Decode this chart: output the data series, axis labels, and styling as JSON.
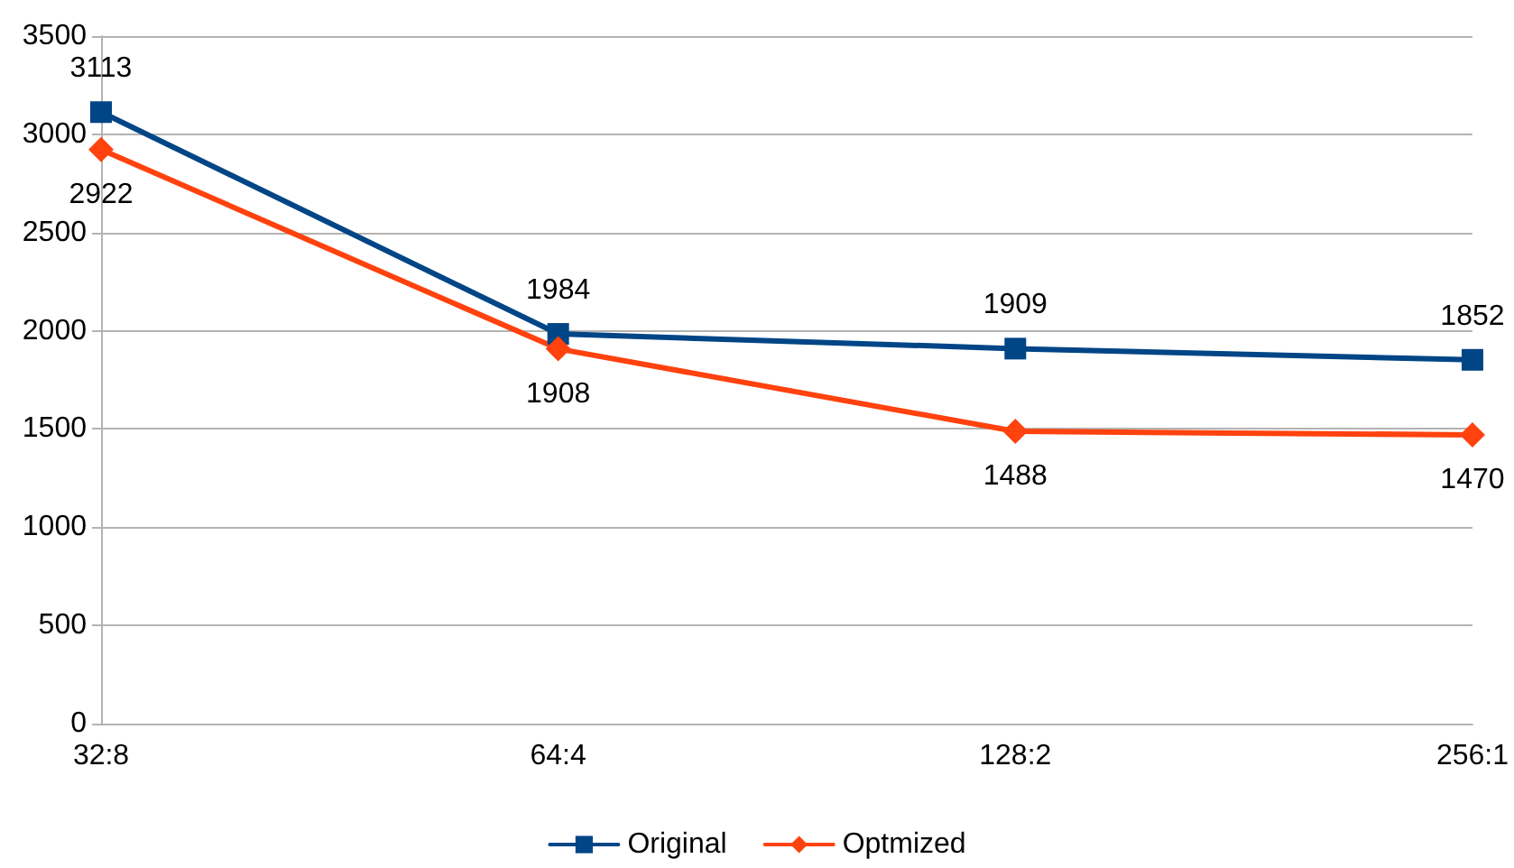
{
  "chart_data": {
    "type": "line",
    "categories": [
      "32:8",
      "64:4",
      "128:2",
      "256:1"
    ],
    "series": [
      {
        "name": "Original",
        "color": "#004586",
        "marker": "square",
        "values": [
          3113,
          1984,
          1909,
          1852
        ]
      },
      {
        "name": "Optmized",
        "color": "#ff420e",
        "marker": "diamond",
        "values": [
          2922,
          1908,
          1488,
          1470
        ]
      }
    ],
    "ylim": [
      0,
      3500
    ],
    "yticks": [
      0,
      500,
      1000,
      1500,
      2000,
      2500,
      3000,
      3500
    ],
    "grid": "y",
    "legend": "bottom",
    "data_labels": true,
    "line_style": "solid"
  }
}
